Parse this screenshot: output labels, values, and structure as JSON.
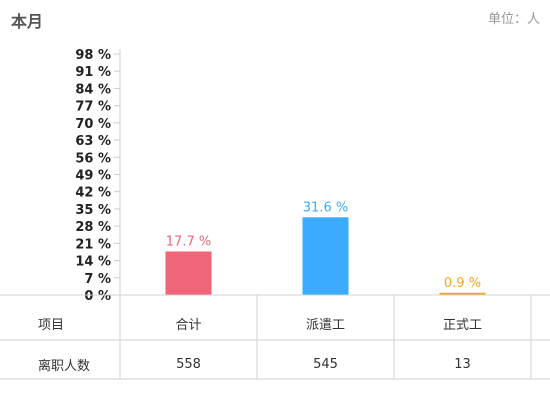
{
  "header": {
    "title": "本月",
    "unit": "单位：人"
  },
  "chart_data": {
    "type": "bar",
    "title": "",
    "xlabel": "",
    "ylabel": "",
    "categories": [
      "合计",
      "派遣工",
      "正式工"
    ],
    "values": [
      17.7,
      31.6,
      0.9
    ],
    "value_labels": [
      "17.7 %",
      "31.6 %",
      "0.9 %"
    ],
    "bar_colors": [
      "#ee6677",
      "#3aabff",
      "#f5a623"
    ],
    "ylim": [
      0,
      98
    ],
    "yticks": [
      0,
      7,
      14,
      21,
      28,
      35,
      42,
      49,
      56,
      63,
      70,
      77,
      84,
      91,
      98
    ],
    "ytick_labels": [
      "0 %",
      "7 %",
      "14 %",
      "21 %",
      "28 %",
      "35 %",
      "42 %",
      "49 %",
      "56 %",
      "63 %",
      "70 %",
      "77 %",
      "84 %",
      "91 %",
      "98 %"
    ],
    "grid": false,
    "legend": "none"
  },
  "table": {
    "header_label": "项目",
    "row_label": "离职人数",
    "row_values": [
      "558",
      "545",
      "13"
    ]
  }
}
